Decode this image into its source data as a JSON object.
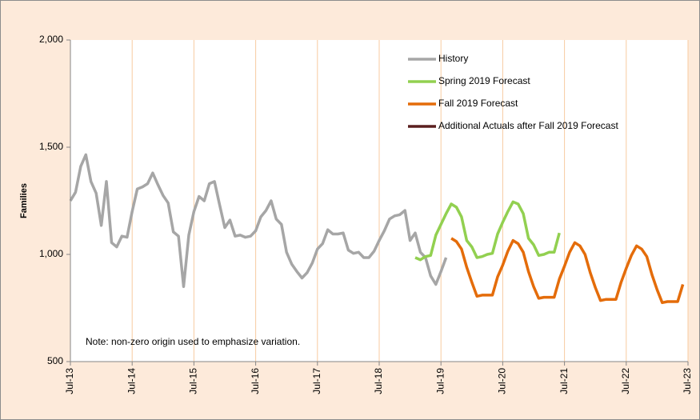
{
  "chart_data": {
    "type": "line",
    "y_label": "Families",
    "note": "Note: non-zero origin used to emphasize variation.",
    "categories": [
      "Jul-13",
      null,
      null,
      null,
      null,
      null,
      null,
      null,
      null,
      null,
      null,
      null,
      "Jul-14",
      null,
      null,
      null,
      null,
      null,
      null,
      null,
      null,
      null,
      null,
      null,
      "Jul-15",
      null,
      null,
      null,
      null,
      null,
      null,
      null,
      null,
      null,
      null,
      null,
      "Jul-16",
      null,
      null,
      null,
      null,
      null,
      null,
      null,
      null,
      null,
      null,
      null,
      "Jul-17",
      null,
      null,
      null,
      null,
      null,
      null,
      null,
      null,
      null,
      null,
      null,
      "Jul-18",
      null,
      null,
      null,
      null,
      null,
      null,
      null,
      null,
      null,
      null,
      null,
      "Jul-19",
      null,
      null,
      null,
      null,
      null,
      null,
      null,
      null,
      null,
      null,
      null,
      "Jul-20",
      null,
      null,
      null,
      null,
      null,
      null,
      null,
      null,
      null,
      null,
      null,
      "Jul-21",
      null,
      null,
      null,
      null,
      null,
      null,
      null,
      null,
      null,
      null,
      null,
      "Jul-22",
      null,
      null,
      null,
      null,
      null,
      null,
      null,
      null,
      null,
      null,
      null,
      "Jul-23"
    ],
    "series": [
      {
        "name": "History",
        "color": "#a6a6a6",
        "values": [
          1250,
          1290,
          1410,
          1465,
          1340,
          1285,
          1135,
          1340,
          1055,
          1035,
          1085,
          1080,
          1200,
          1305,
          1315,
          1330,
          1380,
          1325,
          1275,
          1240,
          1105,
          1085,
          850,
          1090,
          1200,
          1270,
          1250,
          1330,
          1340,
          1230,
          1125,
          1160,
          1085,
          1090,
          1080,
          1085,
          1110,
          1175,
          1205,
          1250,
          1165,
          1140,
          1010,
          955,
          920,
          890,
          915,
          960,
          1025,
          1050,
          1115,
          1095,
          1095,
          1100,
          1020,
          1005,
          1010,
          985,
          985,
          1015,
          1065,
          1110,
          1165,
          1180,
          1185,
          1205,
          1065,
          1100,
          1010,
          985,
          900,
          860,
          920,
          985,
          null,
          null,
          null,
          null,
          null,
          null,
          null,
          null,
          null,
          null,
          null,
          null,
          null,
          null,
          null,
          null,
          null,
          null,
          null,
          null,
          null,
          null,
          null,
          null,
          null,
          null,
          null,
          null,
          null,
          null,
          null,
          null,
          null,
          null,
          null,
          null,
          null,
          null,
          null,
          null,
          null,
          null,
          null,
          null,
          null,
          null,
          null
        ]
      },
      {
        "name": "Spring 2019 Forecast",
        "color": "#92d050",
        "values": [
          null,
          null,
          null,
          null,
          null,
          null,
          null,
          null,
          null,
          null,
          null,
          null,
          null,
          null,
          null,
          null,
          null,
          null,
          null,
          null,
          null,
          null,
          null,
          null,
          null,
          null,
          null,
          null,
          null,
          null,
          null,
          null,
          null,
          null,
          null,
          null,
          null,
          null,
          null,
          null,
          null,
          null,
          null,
          null,
          null,
          null,
          null,
          null,
          null,
          null,
          null,
          null,
          null,
          null,
          null,
          null,
          null,
          null,
          null,
          null,
          null,
          null,
          null,
          null,
          null,
          null,
          null,
          985,
          975,
          990,
          995,
          1090,
          1140,
          1190,
          1235,
          1220,
          1175,
          1065,
          1035,
          985,
          990,
          1000,
          1005,
          1095,
          1150,
          1200,
          1245,
          1235,
          1190,
          1075,
          1045,
          995,
          1000,
          1010,
          1010,
          1100,
          null,
          null,
          null,
          null,
          null,
          null,
          null,
          null,
          null,
          null,
          null,
          null,
          null,
          null,
          null,
          null,
          null,
          null,
          null,
          null,
          null,
          null,
          null,
          null,
          null
        ]
      },
      {
        "name": "Fall 2019 Forecast",
        "color": "#e46c0a",
        "values": [
          null,
          null,
          null,
          null,
          null,
          null,
          null,
          null,
          null,
          null,
          null,
          null,
          null,
          null,
          null,
          null,
          null,
          null,
          null,
          null,
          null,
          null,
          null,
          null,
          null,
          null,
          null,
          null,
          null,
          null,
          null,
          null,
          null,
          null,
          null,
          null,
          null,
          null,
          null,
          null,
          null,
          null,
          null,
          null,
          null,
          null,
          null,
          null,
          null,
          null,
          null,
          null,
          null,
          null,
          null,
          null,
          null,
          null,
          null,
          null,
          null,
          null,
          null,
          null,
          null,
          null,
          null,
          null,
          null,
          null,
          null,
          null,
          null,
          null,
          1075,
          1060,
          1025,
          940,
          870,
          805,
          810,
          810,
          810,
          895,
          950,
          1015,
          1065,
          1050,
          1010,
          920,
          850,
          795,
          800,
          800,
          800,
          885,
          945,
          1010,
          1055,
          1040,
          1000,
          915,
          845,
          785,
          790,
          790,
          790,
          870,
          935,
          995,
          1040,
          1025,
          990,
          905,
          835,
          775,
          780,
          780,
          780,
          860,
          null
        ]
      },
      {
        "name": "Additional Actuals after Fall 2019 Forecast",
        "color": "#5a1f1f",
        "values": [
          null,
          null,
          null,
          null,
          null,
          null,
          null,
          null,
          null,
          null,
          null,
          null,
          null,
          null,
          null,
          null,
          null,
          null,
          null,
          null,
          null,
          null,
          null,
          null,
          null,
          null,
          null,
          null,
          null,
          null,
          null,
          null,
          null,
          null,
          null,
          null,
          null,
          null,
          null,
          null,
          null,
          null,
          null,
          null,
          null,
          null,
          null,
          null,
          null,
          null,
          null,
          null,
          null,
          null,
          null,
          null,
          null,
          null,
          null,
          null,
          null,
          null,
          null,
          null,
          null,
          null,
          null,
          null,
          null,
          null,
          null,
          null,
          null,
          null,
          null,
          null,
          null,
          null,
          null,
          null,
          null,
          null,
          null,
          null,
          null,
          null,
          null,
          null,
          null,
          null,
          null,
          null,
          null,
          null,
          null,
          null,
          null,
          null,
          null,
          null,
          null,
          null,
          null,
          null,
          null,
          null,
          null,
          null,
          null,
          null,
          null,
          null,
          null,
          null,
          null,
          null,
          null,
          null,
          null,
          null,
          null
        ]
      }
    ],
    "ylim": [
      500,
      2000
    ],
    "yticks": [
      {
        "value": 500,
        "label": "500"
      },
      {
        "value": 1000,
        "label": "1,000"
      },
      {
        "value": 1500,
        "label": "1,500"
      },
      {
        "value": 2000,
        "label": "2,000"
      }
    ],
    "x_grid": true,
    "legend": "upper right"
  }
}
